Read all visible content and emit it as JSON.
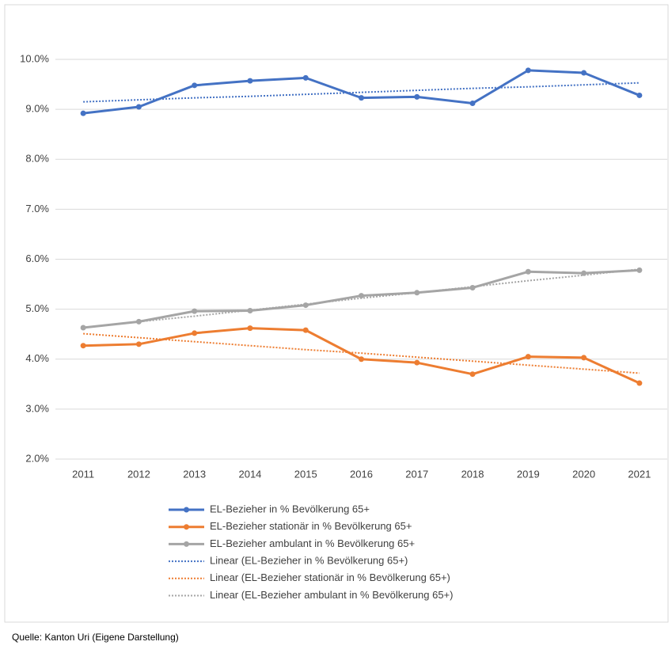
{
  "chart_data": {
    "type": "line",
    "categories": [
      "2011",
      "2012",
      "2013",
      "2014",
      "2015",
      "2016",
      "2017",
      "2018",
      "2019",
      "2020",
      "2021"
    ],
    "series": [
      {
        "name": "EL-Bezieher in % Bevölkerung 65+",
        "color": "#4472c4",
        "marker": true,
        "values": [
          8.92,
          9.05,
          9.48,
          9.57,
          9.63,
          9.23,
          9.25,
          9.12,
          9.78,
          9.73,
          9.28
        ]
      },
      {
        "name": "EL-Bezieher stationär in % Bevölkerung 65+",
        "color": "#ed7d31",
        "marker": true,
        "values": [
          4.27,
          4.3,
          4.52,
          4.62,
          4.58,
          4.0,
          3.93,
          3.7,
          4.05,
          4.03,
          3.52
        ]
      },
      {
        "name": "EL-Bezieher ambulant in % Bevölkerung 65+",
        "color": "#a5a5a5",
        "marker": true,
        "values": [
          4.63,
          4.75,
          4.96,
          4.97,
          5.08,
          5.27,
          5.33,
          5.43,
          5.75,
          5.72,
          5.78
        ]
      },
      {
        "name": "Linear (EL-Bezieher in % Bevölkerung 65+)",
        "color": "#4472c4",
        "dash": "dotted",
        "values": [
          9.15,
          9.19,
          9.23,
          9.26,
          9.3,
          9.34,
          9.38,
          9.42,
          9.45,
          9.49,
          9.53
        ]
      },
      {
        "name": "Linear (EL-Bezieher stationär in % Bevölkerung 65+)",
        "color": "#ed7d31",
        "dash": "dotted",
        "values": [
          4.51,
          4.43,
          4.35,
          4.27,
          4.19,
          4.12,
          4.04,
          3.96,
          3.88,
          3.8,
          3.72
        ]
      },
      {
        "name": "Linear (EL-Bezieher ambulant in % Bevölkerung 65+)",
        "color": "#a5a5a5",
        "dash": "dotted",
        "values": [
          4.63,
          4.75,
          4.86,
          4.98,
          5.1,
          5.22,
          5.33,
          5.45,
          5.57,
          5.68,
          5.8
        ]
      }
    ],
    "ylim": [
      2,
      10
    ],
    "yticks": [
      {
        "value": 2,
        "label": "2.0%"
      },
      {
        "value": 3,
        "label": "3.0%"
      },
      {
        "value": 4,
        "label": "4.0%"
      },
      {
        "value": 5,
        "label": "5.0%"
      },
      {
        "value": 6,
        "label": "6.0%"
      },
      {
        "value": 7,
        "label": "7.0%"
      },
      {
        "value": 8,
        "label": "8.0%"
      },
      {
        "value": 9,
        "label": "9.0%"
      },
      {
        "value": 10,
        "label": "10.0%"
      }
    ],
    "grid": true,
    "legend": "bottom",
    "source": "Quelle: Kanton Uri (Eigene Darstellung)"
  }
}
